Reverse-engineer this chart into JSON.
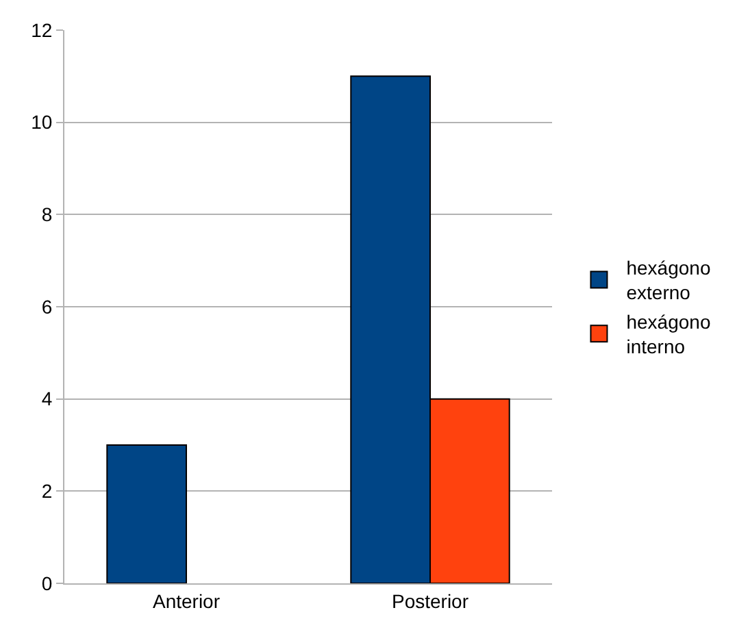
{
  "chart_data": {
    "type": "bar",
    "categories": [
      "Anterior",
      "Posterior"
    ],
    "series": [
      {
        "name": "hexágono externo",
        "color": "#004586",
        "values": [
          3,
          11
        ]
      },
      {
        "name": "hexágono interno",
        "color": "#ff420e",
        "values": [
          null,
          4
        ]
      }
    ],
    "ylim": [
      0,
      12
    ],
    "yticks": [
      0,
      2,
      4,
      6,
      8,
      10,
      12
    ],
    "grid": "y",
    "legend": "right"
  }
}
